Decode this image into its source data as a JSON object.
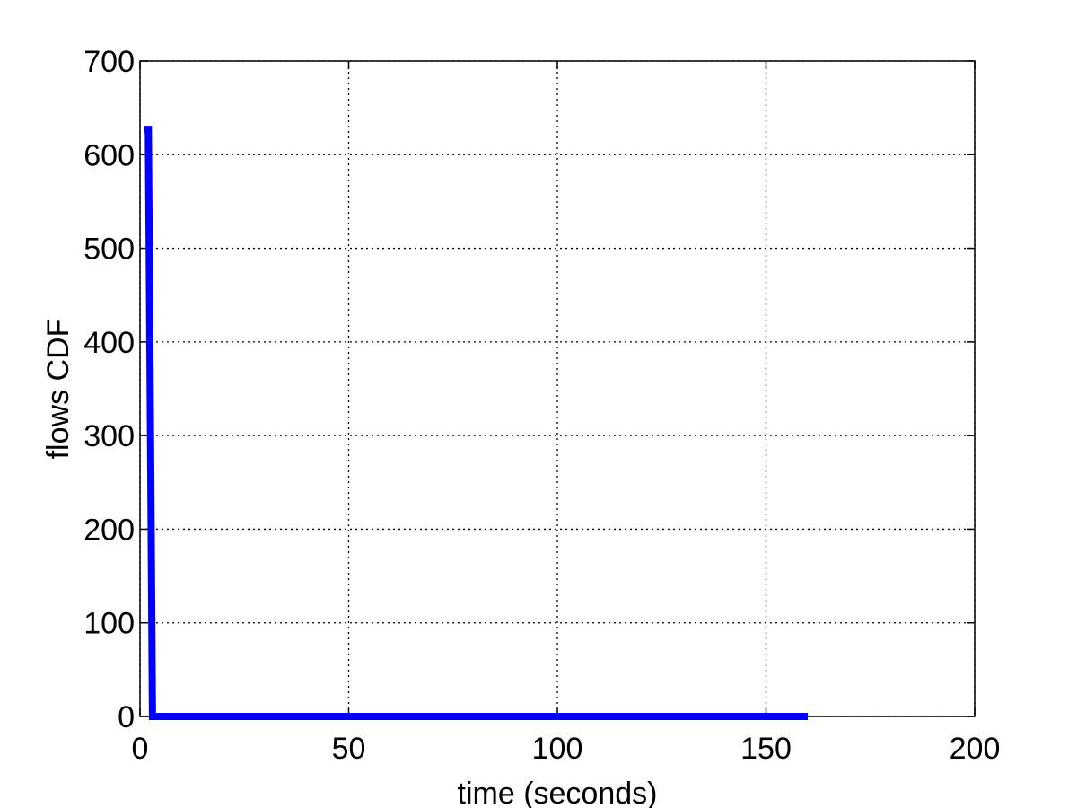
{
  "chart_data": {
    "type": "line",
    "xlabel": "time (seconds)",
    "ylabel": "flows CDF",
    "xlim": [
      0,
      200
    ],
    "ylim": [
      0,
      700
    ],
    "xticks": [
      "0",
      "50",
      "100",
      "150",
      "200"
    ],
    "yticks": [
      "0",
      "100",
      "200",
      "300",
      "400",
      "500",
      "600",
      "700"
    ],
    "grid": true,
    "line_color": "#0000ff",
    "series": [
      {
        "x": [
          1,
          2,
          3,
          160
        ],
        "y": [
          627,
          627,
          0,
          0
        ]
      }
    ]
  }
}
